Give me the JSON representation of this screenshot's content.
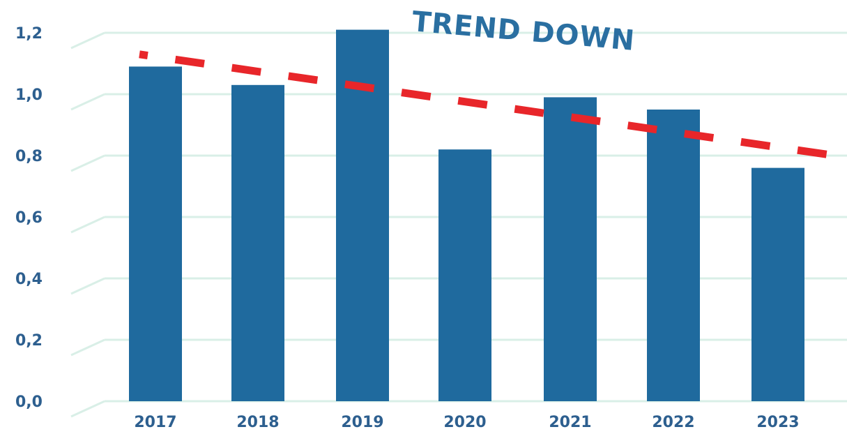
{
  "chart_data": {
    "type": "bar",
    "categories": [
      "2017",
      "2018",
      "2019",
      "2020",
      "2021",
      "2022",
      "2023"
    ],
    "values": [
      1.09,
      1.03,
      1.21,
      0.82,
      0.99,
      0.95,
      0.76
    ],
    "y_ticks": [
      "0,0",
      "0,2",
      "0,4",
      "0,6",
      "0,8",
      "1,0",
      "1,2"
    ],
    "ylim": [
      0,
      1.2
    ],
    "grid": true,
    "annotation": "TREND DOWN",
    "trendline": {
      "style": "dashed",
      "start": 1.13,
      "end": 0.8
    },
    "colors": {
      "bar": "#1f6a9e",
      "trend": "#e8262a",
      "grid": "#d9efe7",
      "tick_text": "#2d5f8f",
      "annotation": "#2a6fa1"
    }
  }
}
